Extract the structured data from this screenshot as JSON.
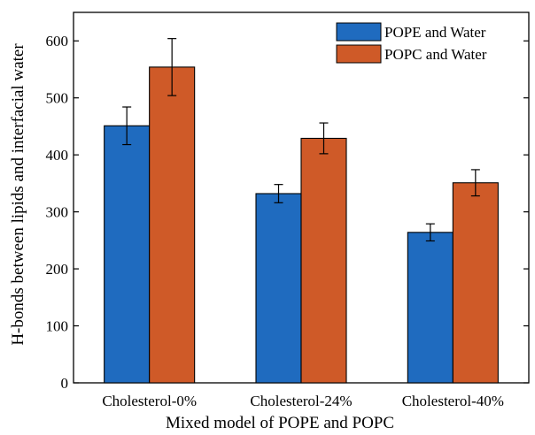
{
  "chart_data": {
    "type": "bar",
    "title": "",
    "xlabel": "Mixed model of POPE and POPC",
    "ylabel": "H-bonds between lipids and interfacial water",
    "categories": [
      "Cholesterol-0%",
      "Cholesterol-24%",
      "Cholesterol-40%"
    ],
    "series": [
      {
        "name": "POPE and Water",
        "color": "#1f6bbf",
        "values": [
          451,
          332,
          264
        ],
        "errors": [
          33,
          16,
          15
        ]
      },
      {
        "name": "POPC and Water",
        "color": "#cf5a28",
        "values": [
          554,
          429,
          351
        ],
        "errors": [
          50,
          27,
          23
        ]
      }
    ],
    "ylim": [
      0,
      650
    ],
    "yticks": [
      0,
      100,
      200,
      300,
      400,
      500,
      600
    ],
    "grid": false,
    "legend_position": "top-right"
  }
}
